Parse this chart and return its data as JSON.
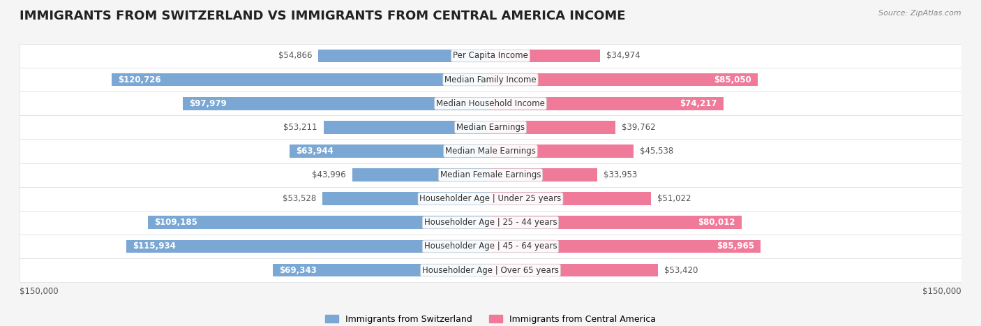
{
  "title": "IMMIGRANTS FROM SWITZERLAND VS IMMIGRANTS FROM CENTRAL AMERICA INCOME",
  "source": "Source: ZipAtlas.com",
  "categories": [
    "Per Capita Income",
    "Median Family Income",
    "Median Household Income",
    "Median Earnings",
    "Median Male Earnings",
    "Median Female Earnings",
    "Householder Age | Under 25 years",
    "Householder Age | 25 - 44 years",
    "Householder Age | 45 - 64 years",
    "Householder Age | Over 65 years"
  ],
  "switzerland_values": [
    54866,
    120726,
    97979,
    53211,
    63944,
    43996,
    53528,
    109185,
    115934,
    69343
  ],
  "central_america_values": [
    34974,
    85050,
    74217,
    39762,
    45538,
    33953,
    51022,
    80012,
    85965,
    53420
  ],
  "switzerland_labels": [
    "$54,866",
    "$120,726",
    "$97,979",
    "$53,211",
    "$63,944",
    "$43,996",
    "$53,528",
    "$109,185",
    "$115,934",
    "$69,343"
  ],
  "central_america_labels": [
    "$34,974",
    "$85,050",
    "$74,217",
    "$39,762",
    "$45,538",
    "$33,953",
    "$51,022",
    "$80,012",
    "$85,965",
    "$53,420"
  ],
  "switzerland_color": "#7ba7d4",
  "central_america_color": "#f07a9a",
  "switzerland_color_dark": "#6b9bc8",
  "central_america_color_dark": "#e86a8a",
  "max_value": 150000,
  "background_color": "#f5f5f5",
  "row_bg_color": "#ffffff",
  "row_alt_color": "#f9f9f9",
  "legend_switzerland": "Immigrants from Switzerland",
  "legend_central_america": "Immigrants from Central America",
  "axis_label_left": "$150,000",
  "axis_label_right": "$150,000",
  "title_fontsize": 13,
  "label_fontsize": 8.5,
  "category_fontsize": 8.5,
  "legend_fontsize": 9
}
